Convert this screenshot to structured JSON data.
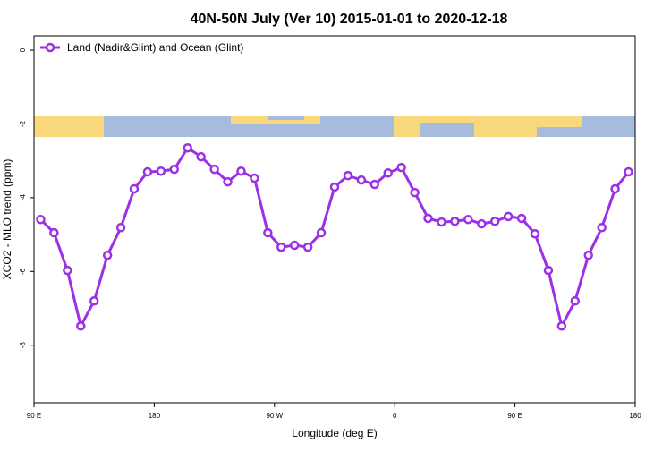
{
  "chart_data": {
    "type": "line",
    "title": "40N-50N July (Ver 10)   2015-01-01 to 2020-12-18",
    "x_label": "Longitude (deg E)",
    "y_label": "XCO2 - MLO trend (ppm)",
    "x": [
      95,
      105,
      115,
      125,
      135,
      145,
      155,
      165,
      175,
      185,
      195,
      205,
      215,
      225,
      235,
      245,
      255,
      265,
      275,
      285,
      295,
      305,
      315,
      325,
      335,
      345,
      355,
      365,
      375,
      385,
      395,
      405,
      415,
      425,
      435,
      445,
      455,
      465,
      475,
      485,
      495,
      505,
      515,
      525,
      535
    ],
    "series": [
      {
        "name": "Land (Nadir&Glint) and Ocean (Glint)",
        "color": "#9b30e6",
        "values": [
          -4.59,
          -4.95,
          -5.97,
          -7.48,
          -6.8,
          -5.56,
          -4.81,
          -3.76,
          -3.3,
          -3.28,
          -3.23,
          -2.65,
          -2.89,
          -3.23,
          -3.57,
          -3.28,
          -3.47,
          -4.95,
          -5.34,
          -5.29,
          -5.34,
          -4.95,
          -3.71,
          -3.4,
          -3.52,
          -3.64,
          -3.33,
          -3.18,
          -3.86,
          -4.56,
          -4.66,
          -4.64,
          -4.59,
          -4.71,
          -4.64,
          -4.51,
          -4.56,
          -4.98,
          -5.97,
          -7.48,
          -6.8,
          -5.56,
          -4.81,
          -3.76,
          -3.3
        ]
      }
    ],
    "xlim": [
      90,
      540
    ],
    "xticks": [
      {
        "value": 90,
        "label": "90 E"
      },
      {
        "value": 180,
        "label": "180"
      },
      {
        "value": 270,
        "label": "90 W"
      },
      {
        "value": 360,
        "label": "0"
      },
      {
        "value": 450,
        "label": "90 E"
      },
      {
        "value": 540,
        "label": "180"
      }
    ],
    "ylim": [
      -9.56,
      0.39
    ],
    "yticks": [
      0,
      -2,
      -4,
      -6,
      -8
    ],
    "legend": "top-left"
  }
}
